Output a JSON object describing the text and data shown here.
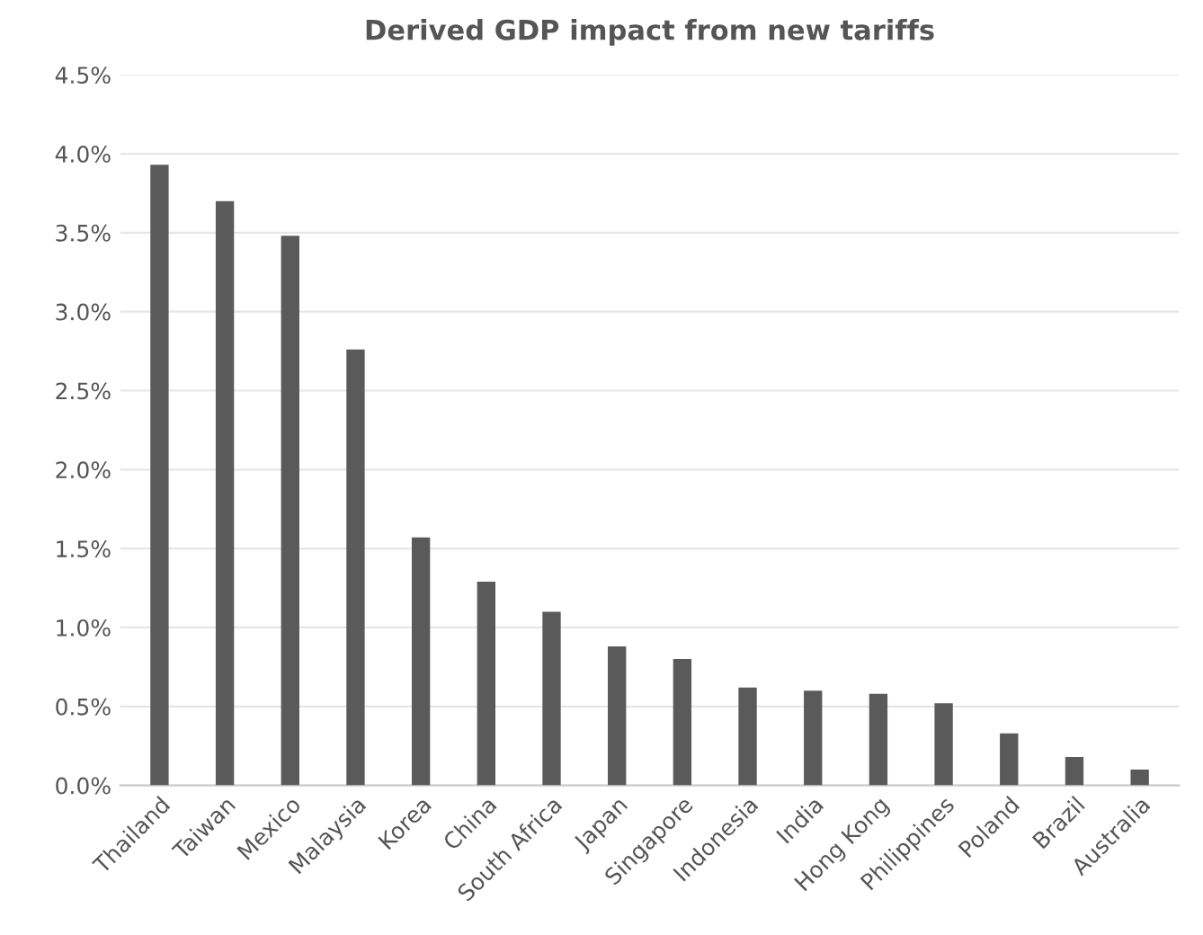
{
  "chart_data": {
    "type": "bar",
    "title": "Derived GDP impact from new tariffs",
    "categories": [
      "Thailand",
      "Taiwan",
      "Mexico",
      "Malaysia",
      "Korea",
      "China",
      "South Africa",
      "Japan",
      "Singapore",
      "Indonesia",
      "India",
      "Hong Kong",
      "Philippines",
      "Poland",
      "Brazil",
      "Australia"
    ],
    "values": [
      3.93,
      3.7,
      3.48,
      2.76,
      1.57,
      1.29,
      1.1,
      0.88,
      0.8,
      0.62,
      0.6,
      0.58,
      0.52,
      0.33,
      0.18,
      0.1
    ],
    "color": "#5a5a5a",
    "ylim": [
      0,
      4.5
    ],
    "yticks": [
      {
        "value": 0,
        "label": "0.0%"
      },
      {
        "value": 0.5,
        "label": "0.5%"
      },
      {
        "value": 1,
        "label": "1.0%"
      },
      {
        "value": 1.5,
        "label": "1.5%"
      },
      {
        "value": 2,
        "label": "2.0%"
      },
      {
        "value": 2.5,
        "label": "2.5%"
      },
      {
        "value": 3,
        "label": "3.0%"
      },
      {
        "value": 3.5,
        "label": "3.5%"
      },
      {
        "value": 4,
        "label": "4.0%"
      },
      {
        "value": 4.5,
        "label": "4.5%"
      }
    ],
    "grid": "y"
  }
}
